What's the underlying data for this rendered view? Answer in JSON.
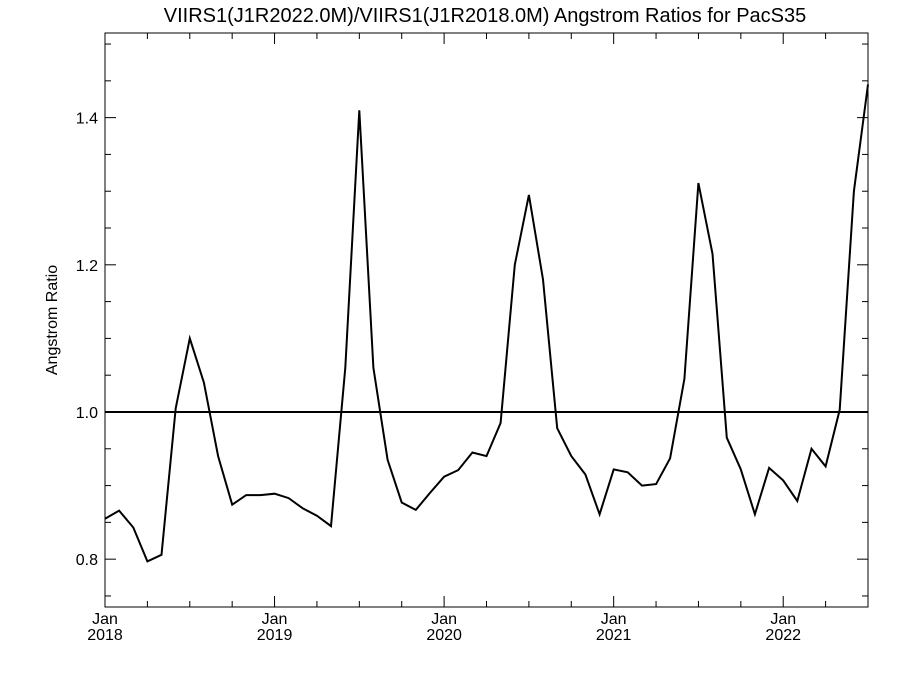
{
  "chart_data": {
    "type": "line",
    "title": "VIIRS1(J1R2022.0M)/VIIRS1(J1R2018.0M)  Angstrom Ratios for PacS35",
    "xlabel": "",
    "ylabel": "Angstrom Ratio",
    "xlim": [
      2018.0,
      2022.5
    ],
    "ylim": [
      0.735,
      1.515
    ],
    "y_ticks": [
      0.8,
      1.0,
      1.2,
      1.4
    ],
    "y_tick_labels": [
      "0.8",
      "1.0",
      "1.2",
      "1.4"
    ],
    "y_minor_step": 0.05,
    "x_ticks": [
      2018,
      2019,
      2020,
      2021,
      2022
    ],
    "x_tick_labels": [
      {
        "month": "Jan",
        "year": "2018"
      },
      {
        "month": "Jan",
        "year": "2019"
      },
      {
        "month": "Jan",
        "year": "2020"
      },
      {
        "month": "Jan",
        "year": "2021"
      },
      {
        "month": "Jan",
        "year": "2022"
      }
    ],
    "x_minor_step": 0.25,
    "reference_line": 1.0,
    "grid": false,
    "series": [
      {
        "color": "#000000",
        "x": [
          2018.0,
          2018.083,
          2018.167,
          2018.25,
          2018.333,
          2018.417,
          2018.5,
          2018.583,
          2018.667,
          2018.75,
          2018.833,
          2018.917,
          2019.0,
          2019.083,
          2019.167,
          2019.25,
          2019.333,
          2019.417,
          2019.5,
          2019.583,
          2019.667,
          2019.75,
          2019.833,
          2019.917,
          2020.0,
          2020.083,
          2020.167,
          2020.25,
          2020.333,
          2020.417,
          2020.5,
          2020.583,
          2020.667,
          2020.75,
          2020.833,
          2020.917,
          2021.0,
          2021.083,
          2021.167,
          2021.25,
          2021.333,
          2021.417,
          2021.5,
          2021.583,
          2021.667,
          2021.75,
          2021.833,
          2021.917,
          2022.0,
          2022.083,
          2022.167,
          2022.25,
          2022.333,
          2022.417,
          2022.5
        ],
        "y": [
          0.855,
          0.866,
          0.843,
          0.797,
          0.806,
          1.005,
          1.1,
          1.04,
          0.94,
          0.874,
          0.887,
          0.887,
          0.889,
          0.883,
          0.869,
          0.859,
          0.845,
          1.06,
          1.41,
          1.06,
          0.935,
          0.877,
          0.867,
          0.89,
          0.912,
          0.921,
          0.945,
          0.94,
          0.985,
          1.2,
          1.295,
          1.18,
          0.978,
          0.94,
          0.915,
          0.861,
          0.922,
          0.918,
          0.9,
          0.902,
          0.937,
          1.045,
          1.311,
          1.215,
          0.965,
          0.922,
          0.861,
          0.924,
          0.907,
          0.879,
          0.95,
          0.926,
          1.003,
          1.3,
          1.445
        ]
      }
    ]
  }
}
